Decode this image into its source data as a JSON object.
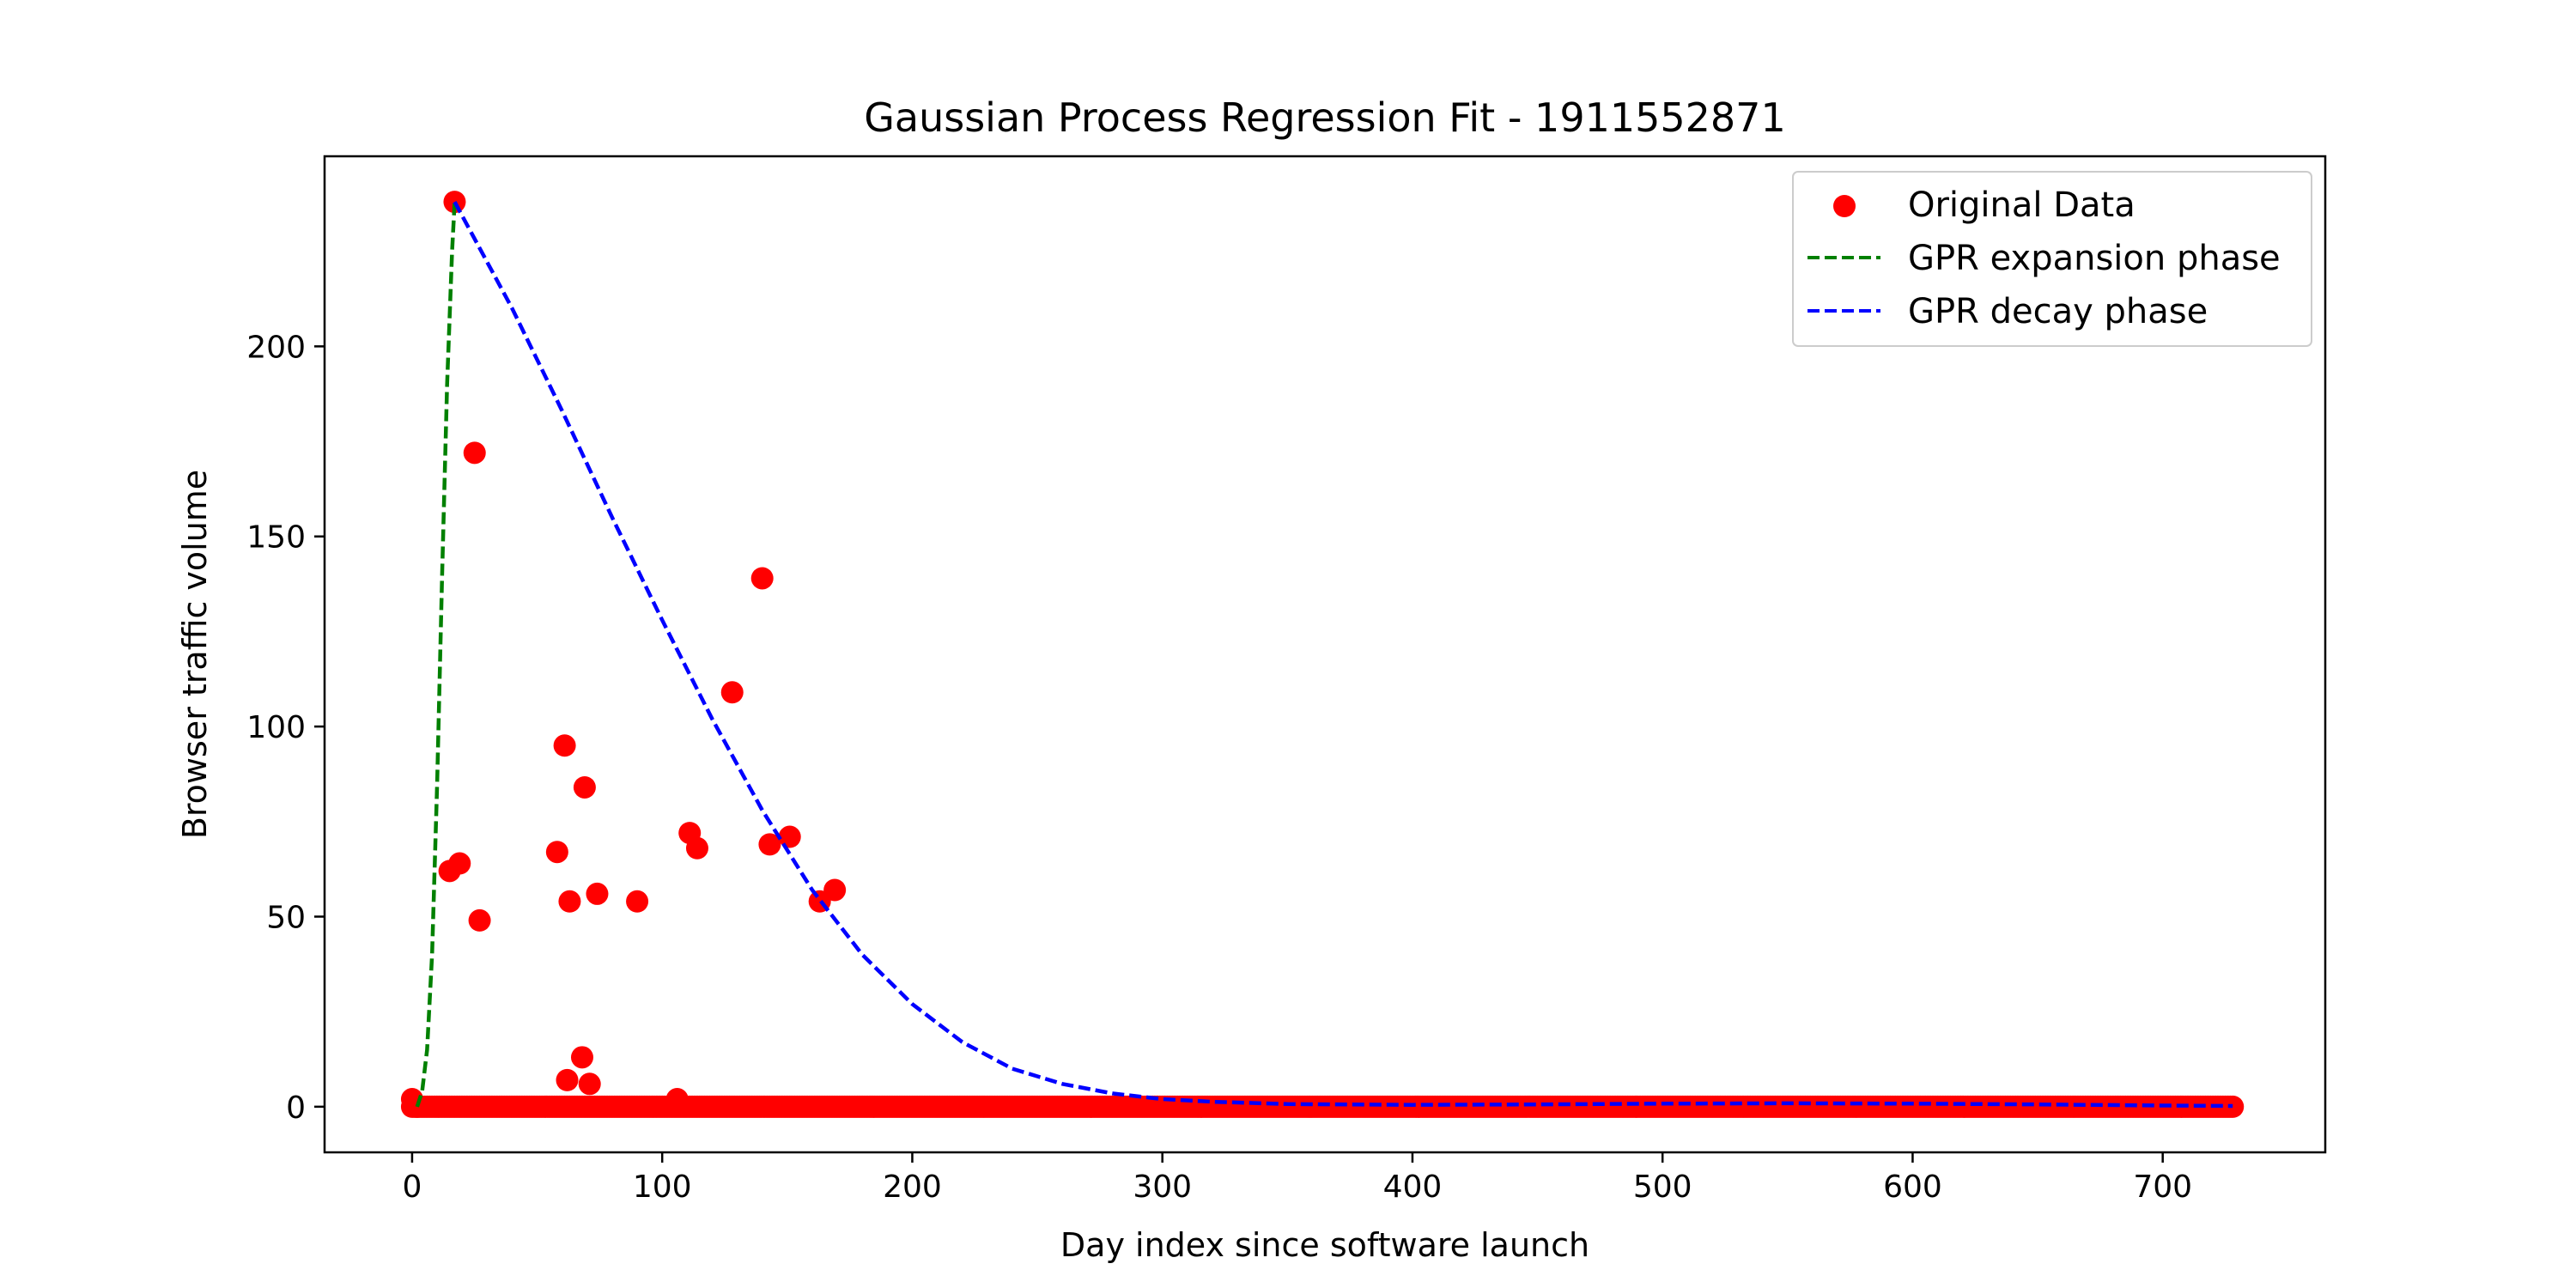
{
  "chart_data": {
    "type": "scatter",
    "title": "Gaussian Process Regression Fit - 1911552871",
    "xlabel": "Day index since software launch",
    "ylabel": "Browser traffic volume",
    "xlim": [
      -35,
      765
    ],
    "ylim": [
      -12,
      250
    ],
    "xticks": [
      0,
      100,
      200,
      300,
      400,
      500,
      600,
      700
    ],
    "yticks": [
      0,
      50,
      100,
      150,
      200
    ],
    "grid": false,
    "legend_position": "top-right",
    "colors": {
      "points": "#ff0000",
      "expansion": "#008000",
      "decay": "#0000ff"
    },
    "series": [
      {
        "name": "Original Data",
        "kind": "scatter",
        "points": [
          [
            0,
            2
          ],
          [
            2,
            0
          ],
          [
            15,
            62
          ],
          [
            17,
            238
          ],
          [
            19,
            64
          ],
          [
            25,
            172
          ],
          [
            27,
            49
          ],
          [
            58,
            67
          ],
          [
            61,
            95
          ],
          [
            62,
            7
          ],
          [
            63,
            54
          ],
          [
            68,
            13
          ],
          [
            69,
            84
          ],
          [
            71,
            6
          ],
          [
            74,
            56
          ],
          [
            90,
            54
          ],
          [
            106,
            2
          ],
          [
            111,
            72
          ],
          [
            114,
            68
          ],
          [
            128,
            109
          ],
          [
            140,
            139
          ],
          [
            143,
            69
          ],
          [
            151,
            71
          ],
          [
            163,
            54
          ],
          [
            169,
            57
          ]
        ],
        "zero_baseline_range": [
          0,
          728
        ]
      },
      {
        "name": "GPR expansion phase",
        "kind": "line",
        "style": "dashed",
        "points": [
          [
            2,
            0
          ],
          [
            4,
            4
          ],
          [
            6,
            15
          ],
          [
            8,
            40
          ],
          [
            10,
            85
          ],
          [
            12,
            140
          ],
          [
            14,
            190
          ],
          [
            16,
            225
          ],
          [
            17,
            238
          ]
        ]
      },
      {
        "name": "GPR decay phase",
        "kind": "line",
        "style": "dashed",
        "points": [
          [
            17,
            238
          ],
          [
            40,
            210
          ],
          [
            60,
            183
          ],
          [
            80,
            155
          ],
          [
            100,
            128
          ],
          [
            120,
            102
          ],
          [
            140,
            78
          ],
          [
            160,
            57
          ],
          [
            180,
            40
          ],
          [
            200,
            27
          ],
          [
            220,
            17
          ],
          [
            240,
            10
          ],
          [
            260,
            6
          ],
          [
            280,
            3.5
          ],
          [
            300,
            2
          ],
          [
            320,
            1.3
          ],
          [
            350,
            0.7
          ],
          [
            400,
            0.5
          ],
          [
            450,
            0.6
          ],
          [
            500,
            0.8
          ],
          [
            550,
            0.9
          ],
          [
            600,
            0.8
          ],
          [
            650,
            0.6
          ],
          [
            700,
            0.3
          ],
          [
            728,
            0.2
          ]
        ]
      }
    ]
  }
}
